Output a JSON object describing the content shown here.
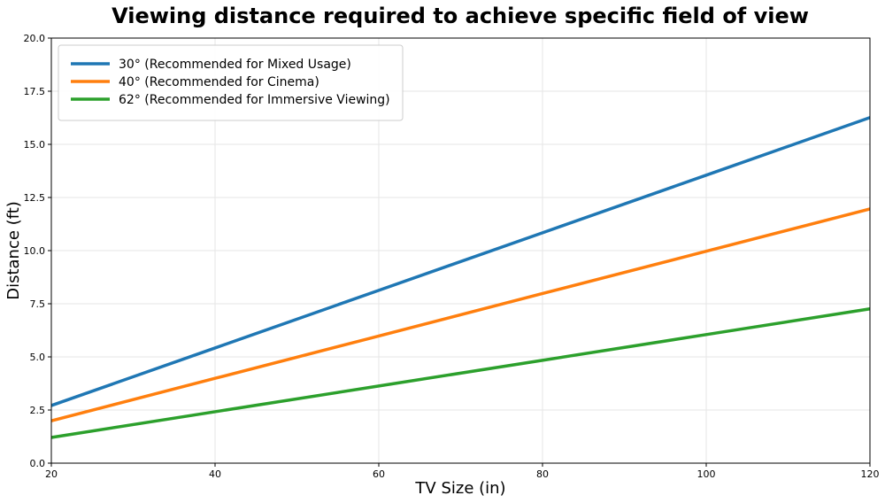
{
  "chart_data": {
    "type": "line",
    "title": "Viewing distance required to achieve specific field of view",
    "xlabel": "TV Size (in)",
    "ylabel": "Distance (ft)",
    "xlim": [
      20,
      120
    ],
    "ylim": [
      0,
      20
    ],
    "xticks": [
      20,
      40,
      60,
      80,
      100,
      120
    ],
    "xtick_labels": [
      "20",
      "40",
      "60",
      "80",
      "100",
      "120"
    ],
    "yticks": [
      0,
      2.5,
      5,
      7.5,
      10,
      12.5,
      15,
      17.5,
      20
    ],
    "ytick_labels": [
      "0.0",
      "2.5",
      "5.0",
      "7.5",
      "10.0",
      "12.5",
      "15.0",
      "17.5",
      "20.0"
    ],
    "grid": true,
    "legend_position": "top-left",
    "series": [
      {
        "name": "30° (Recommended for Mixed Usage)",
        "color": "#1f77b4",
        "x": [
          20,
          40,
          60,
          80,
          100,
          120
        ],
        "y": [
          2.71,
          5.42,
          8.13,
          10.84,
          13.55,
          16.26
        ]
      },
      {
        "name": "40° (Recommended for Cinema)",
        "color": "#ff7f0e",
        "x": [
          20,
          40,
          60,
          80,
          100,
          120
        ],
        "y": [
          1.99,
          3.99,
          5.98,
          7.98,
          9.97,
          11.96
        ]
      },
      {
        "name": "62° (Recommended for Immersive Viewing)",
        "color": "#2ca02c",
        "x": [
          20,
          40,
          60,
          80,
          100,
          120
        ],
        "y": [
          1.21,
          2.42,
          3.63,
          4.84,
          6.05,
          7.26
        ]
      }
    ]
  }
}
